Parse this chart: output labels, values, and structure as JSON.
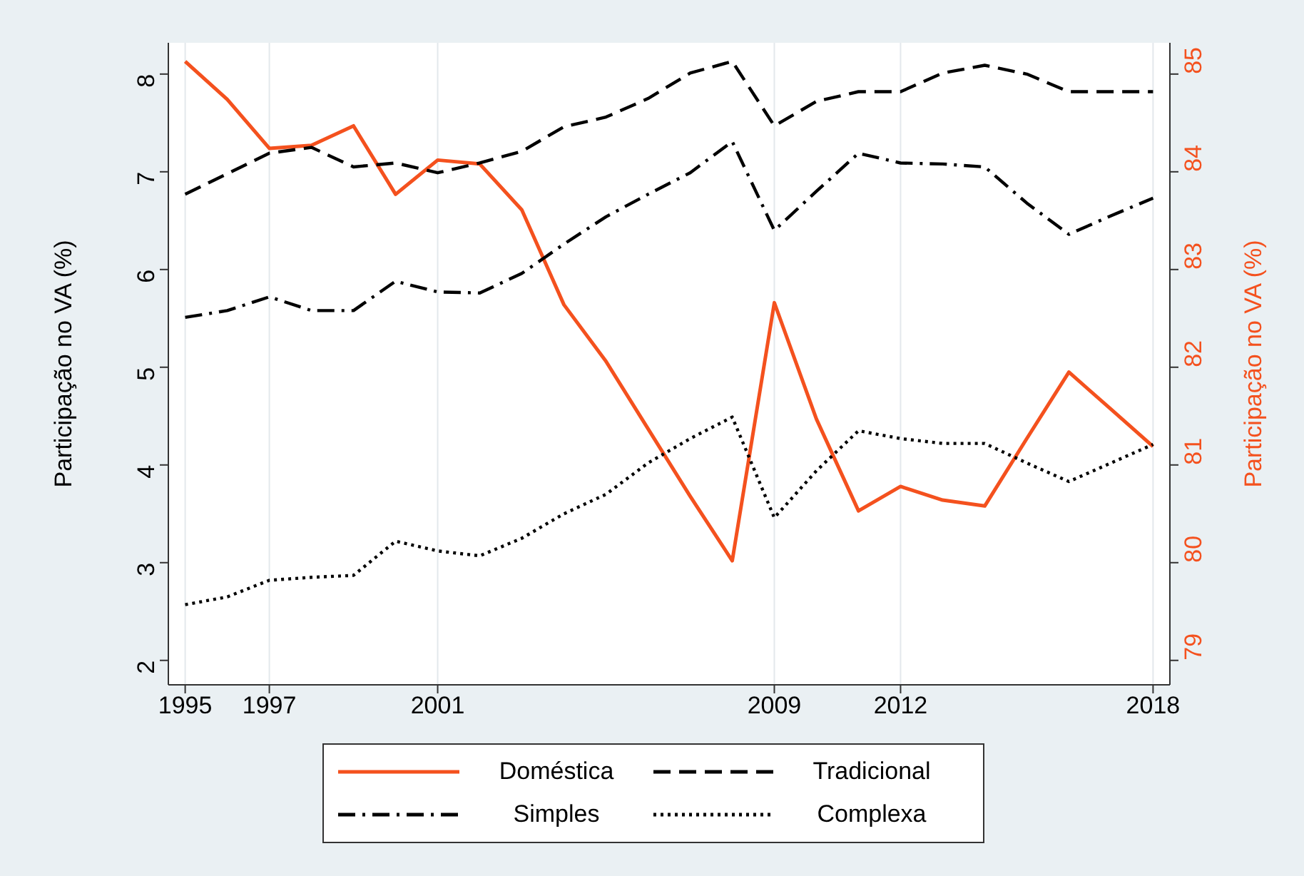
{
  "chart_data": {
    "type": "line",
    "x": [
      1995,
      1996,
      1997,
      1998,
      1999,
      2000,
      2001,
      2002,
      2003,
      2004,
      2005,
      2006,
      2007,
      2008,
      2009,
      2010,
      2011,
      2012,
      2013,
      2014,
      2015,
      2016,
      2017,
      2018
    ],
    "series": [
      {
        "name": "Doméstica",
        "color": "#f4511e",
        "axis": "y2",
        "line_style": "solid",
        "values": [
          85.13,
          84.74,
          84.24,
          84.27,
          84.47,
          83.77,
          84.12,
          84.08,
          83.61,
          82.64,
          82.06,
          81.37,
          80.68,
          80.02,
          82.66,
          81.47,
          80.53,
          80.78,
          80.64,
          80.58,
          81.27,
          81.95,
          81.57,
          81.19
        ]
      },
      {
        "name": "Tradicional",
        "color": "#000000",
        "line_style": "dashed",
        "values": [
          6.77,
          6.98,
          7.19,
          7.25,
          7.05,
          7.09,
          6.99,
          7.09,
          7.21,
          7.46,
          7.56,
          7.75,
          8.01,
          8.13,
          7.47,
          7.72,
          7.82,
          7.82,
          8.01,
          8.09,
          8.0,
          7.82,
          7.82,
          7.82
        ]
      },
      {
        "name": "Simples",
        "color": "#000000",
        "line_style": "dashdot",
        "values": [
          5.51,
          5.58,
          5.72,
          5.58,
          5.58,
          5.88,
          5.77,
          5.76,
          5.96,
          6.26,
          6.54,
          6.77,
          6.99,
          7.31,
          6.4,
          6.8,
          7.19,
          7.09,
          7.08,
          7.05,
          6.68,
          6.36,
          6.55,
          6.73
        ]
      },
      {
        "name": "Complexa",
        "color": "#000000",
        "line_style": "dotted",
        "values": [
          2.57,
          2.65,
          2.82,
          2.85,
          2.87,
          3.22,
          3.12,
          3.07,
          3.25,
          3.5,
          3.7,
          4.02,
          4.27,
          4.49,
          3.46,
          3.94,
          4.35,
          4.27,
          4.22,
          4.22,
          4.02,
          3.83,
          4.02,
          4.21
        ]
      }
    ],
    "xlim": [
      1994.6,
      2018.4
    ],
    "xticks": [
      1995,
      1997,
      2001,
      2009,
      2012,
      2018
    ],
    "ylim": [
      1.75,
      8.32
    ],
    "yticks": [
      2,
      3,
      4,
      5,
      6,
      7,
      8
    ],
    "y2lim": [
      78.75,
      85.32
    ],
    "y2ticks": [
      79,
      80,
      81,
      82,
      83,
      84,
      85
    ],
    "ylabel": "Participação no VA (%)",
    "y2label": "Participação no VA (%)",
    "grid": "x",
    "legend": "bottom",
    "marker": "none"
  }
}
